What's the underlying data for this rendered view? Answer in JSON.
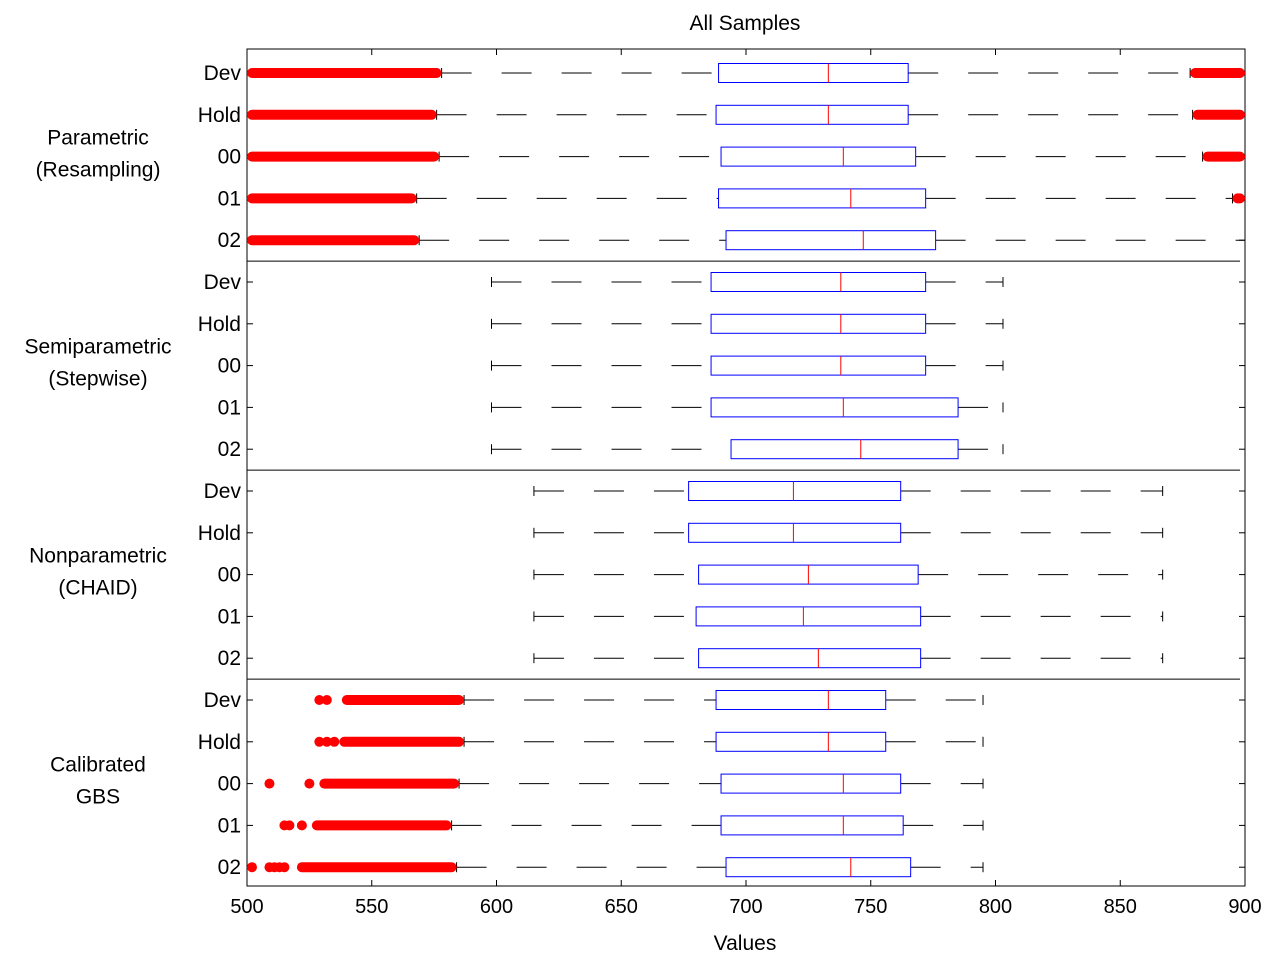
{
  "chart_data": {
    "type": "boxplot",
    "title": "All Samples",
    "xlabel": "Values",
    "ylabel": "",
    "xlim": [
      500,
      900
    ],
    "xticks": [
      500,
      550,
      600,
      650,
      700,
      750,
      800,
      850,
      900
    ],
    "grid": false,
    "colors": {
      "box": "#0000ff",
      "median": "#ff0000",
      "whisker": "#000000",
      "outlier": "#ff0000",
      "axis": "#000000"
    },
    "groups": [
      {
        "label_lines": [
          "Parametric",
          "(Resampling)"
        ],
        "rows": [
          {
            "label": "Dev",
            "whisker_low": 578,
            "q1": 689,
            "median": 733,
            "q3": 765,
            "whisker_high": 878,
            "outlier_ranges": [
              [
                500,
                578
              ],
              [
                878,
                900
              ]
            ],
            "outlier_points": []
          },
          {
            "label": "Hold",
            "whisker_low": 576,
            "q1": 688,
            "median": 733,
            "q3": 765,
            "whisker_high": 879,
            "outlier_ranges": [
              [
                500,
                576
              ],
              [
                879,
                900
              ]
            ],
            "outlier_points": []
          },
          {
            "label": "00",
            "whisker_low": 577,
            "q1": 690,
            "median": 739,
            "q3": 768,
            "whisker_high": 883,
            "outlier_ranges": [
              [
                500,
                577
              ],
              [
                883,
                900
              ]
            ],
            "outlier_points": []
          },
          {
            "label": "01",
            "whisker_low": 568,
            "q1": 689,
            "median": 742,
            "q3": 772,
            "whisker_high": 895,
            "outlier_ranges": [
              [
                500,
                568
              ],
              [
                895,
                900
              ]
            ],
            "outlier_points": []
          },
          {
            "label": "02",
            "whisker_low": 569,
            "q1": 692,
            "median": 747,
            "q3": 776,
            "whisker_high": 900,
            "outlier_ranges": [
              [
                500,
                569
              ]
            ],
            "outlier_points": []
          }
        ]
      },
      {
        "label_lines": [
          "Semiparametric",
          "(Stepwise)"
        ],
        "rows": [
          {
            "label": "Dev",
            "whisker_low": 598,
            "q1": 686,
            "median": 738,
            "q3": 772,
            "whisker_high": 803,
            "outlier_ranges": [],
            "outlier_points": []
          },
          {
            "label": "Hold",
            "whisker_low": 598,
            "q1": 686,
            "median": 738,
            "q3": 772,
            "whisker_high": 803,
            "outlier_ranges": [],
            "outlier_points": []
          },
          {
            "label": "00",
            "whisker_low": 598,
            "q1": 686,
            "median": 738,
            "q3": 772,
            "whisker_high": 803,
            "outlier_ranges": [],
            "outlier_points": []
          },
          {
            "label": "01",
            "whisker_low": 598,
            "q1": 686,
            "median": 739,
            "q3": 785,
            "whisker_high": 803,
            "outlier_ranges": [],
            "outlier_points": []
          },
          {
            "label": "02",
            "whisker_low": 598,
            "q1": 694,
            "median": 746,
            "q3": 785,
            "whisker_high": 803,
            "outlier_ranges": [],
            "outlier_points": []
          }
        ]
      },
      {
        "label_lines": [
          "Nonparametric",
          "(CHAID)"
        ],
        "rows": [
          {
            "label": "Dev",
            "whisker_low": 615,
            "q1": 677,
            "median": 719,
            "q3": 762,
            "whisker_high": 867,
            "outlier_ranges": [],
            "outlier_points": []
          },
          {
            "label": "Hold",
            "whisker_low": 615,
            "q1": 677,
            "median": 719,
            "q3": 762,
            "whisker_high": 867,
            "outlier_ranges": [],
            "outlier_points": []
          },
          {
            "label": "00",
            "whisker_low": 615,
            "q1": 681,
            "median": 725,
            "q3": 769,
            "whisker_high": 867,
            "outlier_ranges": [],
            "outlier_points": []
          },
          {
            "label": "01",
            "whisker_low": 615,
            "q1": 680,
            "median": 723,
            "q3": 770,
            "whisker_high": 867,
            "outlier_ranges": [],
            "outlier_points": []
          },
          {
            "label": "02",
            "whisker_low": 615,
            "q1": 681,
            "median": 729,
            "q3": 770,
            "whisker_high": 867,
            "outlier_ranges": [],
            "outlier_points": []
          }
        ]
      },
      {
        "label_lines": [
          "Calibrated",
          "GBS"
        ],
        "rows": [
          {
            "label": "Dev",
            "whisker_low": 587,
            "q1": 688,
            "median": 733,
            "q3": 756,
            "whisker_high": 795,
            "outlier_ranges": [
              [
                538,
                587
              ]
            ],
            "outlier_points": [
              529,
              532
            ]
          },
          {
            "label": "Hold",
            "whisker_low": 587,
            "q1": 688,
            "median": 733,
            "q3": 756,
            "whisker_high": 795,
            "outlier_ranges": [
              [
                537,
                587
              ]
            ],
            "outlier_points": [
              529,
              532,
              535
            ]
          },
          {
            "label": "00",
            "whisker_low": 585,
            "q1": 690,
            "median": 739,
            "q3": 762,
            "whisker_high": 795,
            "outlier_ranges": [
              [
                529,
                585
              ]
            ],
            "outlier_points": [
              509,
              525
            ]
          },
          {
            "label": "01",
            "whisker_low": 582,
            "q1": 690,
            "median": 739,
            "q3": 763,
            "whisker_high": 795,
            "outlier_ranges": [
              [
                526,
                582
              ]
            ],
            "outlier_points": [
              515,
              517,
              522
            ]
          },
          {
            "label": "02",
            "whisker_low": 584,
            "q1": 692,
            "median": 742,
            "q3": 766,
            "whisker_high": 795,
            "outlier_ranges": [
              [
                520,
                584
              ]
            ],
            "outlier_points": [
              502,
              509,
              511,
              513,
              515
            ]
          }
        ]
      }
    ]
  }
}
